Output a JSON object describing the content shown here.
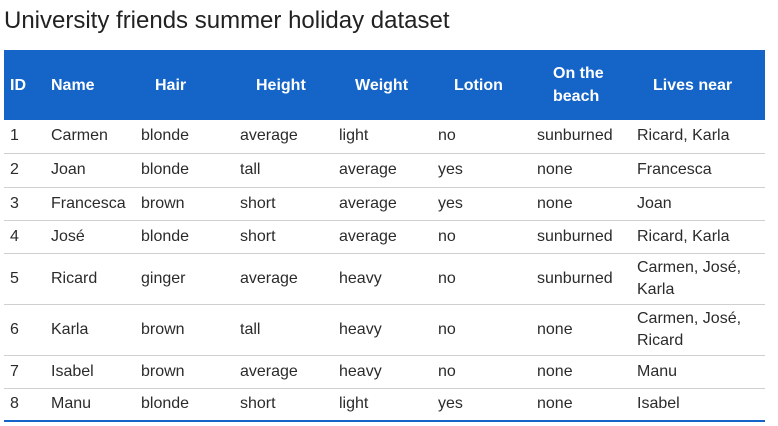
{
  "title": "University friends summer holiday dataset",
  "columns": [
    "ID",
    "Name",
    "Hair",
    "Height",
    "Weight",
    "Lotion",
    "On the beach",
    "Lives near"
  ],
  "rows": [
    [
      "1",
      "Carmen",
      "blonde",
      "average",
      "light",
      "no",
      "sunburned",
      "Ricard, Karla"
    ],
    [
      "2",
      "Joan",
      "blonde",
      "tall",
      "average",
      "yes",
      "none",
      "Francesca"
    ],
    [
      "3",
      "Francesca",
      "brown",
      "short",
      "average",
      "yes",
      "none",
      "Joan"
    ],
    [
      "4",
      "José",
      "blonde",
      "short",
      "average",
      "no",
      "sunburned",
      "Ricard, Karla"
    ],
    [
      "5",
      "Ricard",
      "ginger",
      "average",
      "heavy",
      "no",
      "sunburned",
      "Carmen, José, Karla"
    ],
    [
      "6",
      "Karla",
      "brown",
      "tall",
      "heavy",
      "no",
      "none",
      "Carmen, José, Ricard"
    ],
    [
      "7",
      "Isabel",
      "brown",
      "average",
      "heavy",
      "no",
      "none",
      "Manu"
    ],
    [
      "8",
      "Manu",
      "blonde",
      "short",
      "light",
      "yes",
      "none",
      "Isabel"
    ]
  ],
  "colors": {
    "header_background": "#1565c8",
    "header_text": "#ffffff",
    "row_divider": "#cfcfcf"
  }
}
